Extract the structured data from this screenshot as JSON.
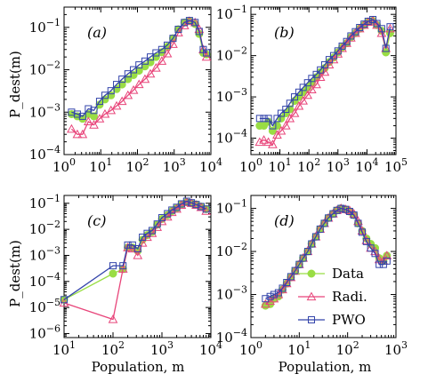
{
  "chart_data": [
    {
      "panel": "(a)",
      "type": "line",
      "xscale": "log",
      "yscale": "log",
      "xlim": [
        1,
        10000
      ],
      "ylim": [
        0.0001,
        0.3
      ],
      "xlabel": "",
      "ylabel": "P_dest(m)",
      "x_tick_labels": [
        "10^0",
        "10^1",
        "10^2",
        "10^3",
        "10^4"
      ],
      "y_tick_labels": [
        "10^-4",
        "10^-3",
        "10^-2",
        "10^-1"
      ],
      "x": [
        1.6,
        2.3,
        3.2,
        4.6,
        6.5,
        9.3,
        13,
        19,
        27,
        38,
        55,
        78,
        110,
        160,
        225,
        320,
        460,
        650,
        930,
        1300,
        1900,
        2600,
        3700,
        4800,
        6200,
        7600
      ],
      "series": [
        {
          "name": "Data",
          "values": [
            0.0009,
            0.0008,
            0.0007,
            0.0009,
            0.0008,
            0.0015,
            0.002,
            0.0025,
            0.0035,
            0.0045,
            0.006,
            0.0075,
            0.0095,
            0.012,
            0.015,
            0.02,
            0.026,
            0.035,
            0.055,
            0.09,
            0.13,
            0.14,
            0.12,
            0.07,
            0.025,
            0.023
          ]
        },
        {
          "name": "Radi.",
          "values": [
            0.0004,
            0.0003,
            0.0003,
            0.0006,
            0.0005,
            0.0007,
            0.0009,
            0.0011,
            0.0014,
            0.0018,
            0.0025,
            0.0033,
            0.0045,
            0.006,
            0.008,
            0.011,
            0.016,
            0.024,
            0.04,
            0.075,
            0.11,
            0.14,
            0.13,
            0.09,
            0.03,
            0.02
          ]
        },
        {
          "name": "PWO",
          "values": [
            0.001,
            0.0009,
            0.0008,
            0.0012,
            0.0011,
            0.0018,
            0.0025,
            0.0032,
            0.0045,
            0.006,
            0.008,
            0.01,
            0.013,
            0.016,
            0.02,
            0.025,
            0.03,
            0.038,
            0.055,
            0.09,
            0.13,
            0.145,
            0.13,
            0.08,
            0.03,
            0.025
          ]
        }
      ]
    },
    {
      "panel": "(b)",
      "type": "line",
      "xscale": "log",
      "yscale": "log",
      "xlim": [
        1,
        100000
      ],
      "ylim": [
        4e-05,
        0.15
      ],
      "xlabel": "",
      "ylabel": "",
      "x_tick_labels": [
        "10^0",
        "10^1",
        "10^2",
        "10^3",
        "10^4",
        "10^5"
      ],
      "y_tick_labels": [
        "10^-4",
        "10^-3",
        "10^-2",
        "10^-1"
      ],
      "x": [
        2,
        2.8,
        4,
        5.6,
        8,
        11,
        16,
        22,
        32,
        45,
        63,
        90,
        125,
        180,
        250,
        350,
        500,
        710,
        1000,
        1400,
        2000,
        2800,
        4000,
        5600,
        8000,
        11000,
        16000,
        22000,
        32000,
        45000,
        63000
      ],
      "series": [
        {
          "name": "Data",
          "values": [
            0.0002,
            0.0002,
            0.00025,
            0.00015,
            0.0002,
            0.0003,
            0.0004,
            0.0005,
            0.0008,
            0.001,
            0.0013,
            0.0017,
            0.0022,
            0.003,
            0.004,
            0.005,
            0.007,
            0.009,
            0.012,
            0.016,
            0.02,
            0.028,
            0.035,
            0.045,
            0.055,
            0.065,
            0.07,
            0.055,
            0.04,
            0.012,
            0.035
          ]
        },
        {
          "name": "Radi.",
          "values": [
            8e-05,
            9e-05,
            8e-05,
            7e-05,
            0.00012,
            0.00015,
            0.0002,
            0.0003,
            0.0004,
            0.0006,
            0.0008,
            0.0011,
            0.0015,
            0.002,
            0.003,
            0.004,
            0.006,
            0.008,
            0.011,
            0.015,
            0.02,
            0.027,
            0.035,
            0.045,
            0.055,
            0.065,
            0.07,
            0.055,
            0.035,
            0.015,
            0.045
          ]
        },
        {
          "name": "PWO",
          "values": [
            0.0003,
            0.0003,
            0.0003,
            0.0002,
            0.0003,
            0.0004,
            0.0005,
            0.0007,
            0.001,
            0.0013,
            0.0017,
            0.0022,
            0.0028,
            0.0035,
            0.0045,
            0.006,
            0.008,
            0.01,
            0.013,
            0.017,
            0.022,
            0.03,
            0.038,
            0.048,
            0.058,
            0.068,
            0.075,
            0.06,
            0.045,
            0.015,
            0.05
          ]
        }
      ]
    },
    {
      "panel": "(c)",
      "type": "line",
      "xscale": "log",
      "yscale": "log",
      "xlim": [
        10,
        10000
      ],
      "ylim": [
        7e-07,
        0.2
      ],
      "xlabel": "Population, m",
      "ylabel": "P_dest(m)",
      "x_tick_labels": [
        "10^1",
        "10^2",
        "10^3",
        "10^4"
      ],
      "y_tick_labels": [
        "10^-6",
        "10^-5",
        "10^-4",
        "10^-3",
        "10^-2",
        "10^-1"
      ],
      "x": [
        10,
        100,
        160,
        200,
        250,
        320,
        400,
        500,
        630,
        800,
        1000,
        1300,
        1600,
        2000,
        2500,
        3200,
        4000,
        5000,
        6300,
        8000
      ],
      "series": [
        {
          "name": "Data",
          "values": [
            2e-05,
            0.0002,
            0.0003,
            0.002,
            0.002,
            0.0015,
            0.004,
            0.006,
            0.008,
            0.015,
            0.025,
            0.035,
            0.05,
            0.065,
            0.09,
            0.11,
            0.1,
            0.09,
            0.075,
            0.06
          ]
        },
        {
          "name": "Radi.",
          "values": [
            1.5e-05,
            3.5e-06,
            0.0003,
            0.002,
            0.0018,
            0.001,
            0.003,
            0.005,
            0.007,
            0.012,
            0.02,
            0.03,
            0.045,
            0.06,
            0.085,
            0.11,
            0.1,
            0.085,
            0.07,
            0.05
          ]
        },
        {
          "name": "PWO",
          "values": [
            2e-05,
            0.0004,
            0.0004,
            0.0025,
            0.0025,
            0.0018,
            0.005,
            0.007,
            0.009,
            0.016,
            0.028,
            0.04,
            0.055,
            0.07,
            0.095,
            0.12,
            0.105,
            0.09,
            0.075,
            0.06
          ]
        }
      ]
    },
    {
      "panel": "(d)",
      "type": "line",
      "xscale": "log",
      "yscale": "log",
      "xlim": [
        1,
        1000
      ],
      "ylim": [
        0.0001,
        0.2
      ],
      "xlabel": "Population, m",
      "ylabel": "",
      "x_tick_labels": [
        "10^0",
        "10^1",
        "10^2",
        "10^3"
      ],
      "y_tick_labels": [
        "10^-4",
        "10^-3",
        "10^-2",
        "10^-1"
      ],
      "x": [
        2,
        2.5,
        3,
        3.7,
        4.5,
        5.5,
        6.7,
        8.2,
        10,
        12,
        15,
        18,
        22,
        27,
        33,
        40,
        50,
        60,
        73,
        90,
        110,
        135,
        165,
        200,
        245,
        300,
        370,
        450,
        550,
        650
      ],
      "series": [
        {
          "name": "Data",
          "values": [
            0.00055,
            0.0006,
            0.0008,
            0.0009,
            0.0013,
            0.0018,
            0.0025,
            0.0035,
            0.005,
            0.007,
            0.01,
            0.015,
            0.022,
            0.033,
            0.045,
            0.06,
            0.075,
            0.09,
            0.1,
            0.095,
            0.085,
            0.07,
            0.045,
            0.03,
            0.02,
            0.015,
            0.012,
            0.007,
            0.006,
            0.008
          ]
        },
        {
          "name": "Radi.",
          "values": [
            0.0006,
            0.0007,
            0.0008,
            0.001,
            0.0013,
            0.0018,
            0.0025,
            0.0035,
            0.005,
            0.007,
            0.01,
            0.015,
            0.022,
            0.033,
            0.045,
            0.06,
            0.075,
            0.09,
            0.1,
            0.095,
            0.09,
            0.075,
            0.05,
            0.03,
            0.018,
            0.012,
            0.01,
            0.0065,
            0.006,
            0.008
          ]
        },
        {
          "name": "PWO",
          "values": [
            0.0008,
            0.0009,
            0.001,
            0.0011,
            0.0014,
            0.0019,
            0.0026,
            0.0036,
            0.005,
            0.007,
            0.01,
            0.015,
            0.022,
            0.033,
            0.045,
            0.06,
            0.075,
            0.09,
            0.1,
            0.095,
            0.085,
            0.07,
            0.045,
            0.028,
            0.017,
            0.012,
            0.009,
            0.005,
            0.005,
            0.006
          ]
        }
      ]
    }
  ],
  "legend": {
    "placement": "lower-right",
    "entries": [
      "Data",
      "Radi.",
      "PWO"
    ]
  },
  "colors": {
    "data": "#99dd44",
    "radi": "#e8457a",
    "pwo": "#3344aa"
  }
}
